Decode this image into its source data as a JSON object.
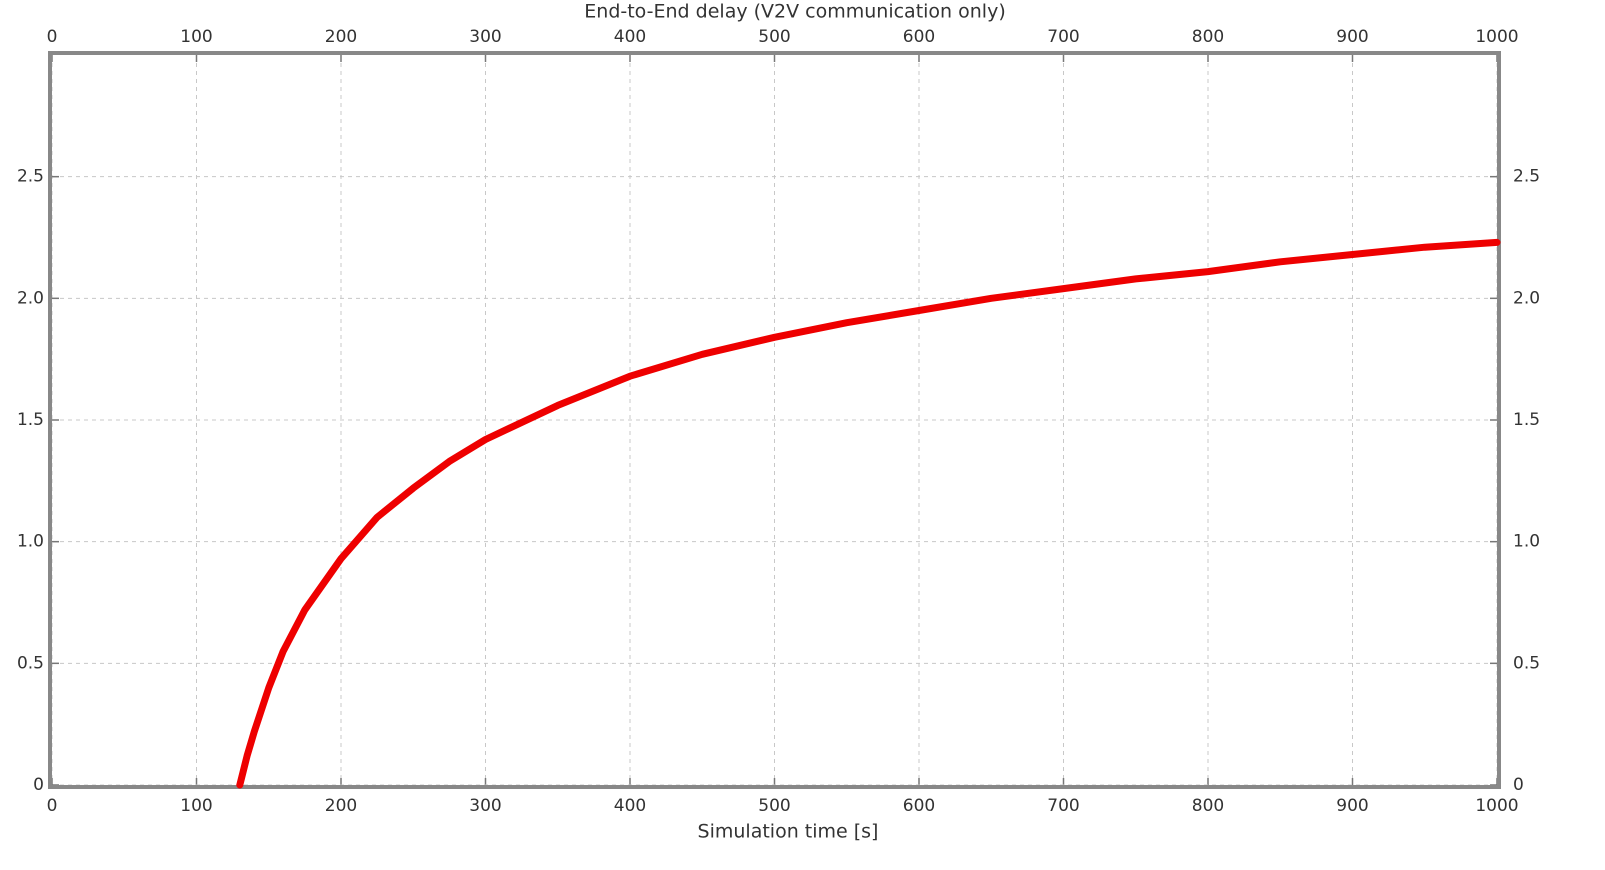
{
  "chart_data": {
    "type": "line",
    "title": "End-to-End delay (V2V communication only)",
    "x_label": "Simulation time [s]",
    "x": [
      130,
      135,
      140,
      150,
      160,
      175,
      200,
      225,
      250,
      275,
      300,
      350,
      400,
      450,
      500,
      550,
      600,
      650,
      700,
      750,
      800,
      850,
      900,
      950,
      1000
    ],
    "values": [
      0,
      0.12,
      0.22,
      0.4,
      0.55,
      0.72,
      0.93,
      1.1,
      1.22,
      1.33,
      1.42,
      1.56,
      1.68,
      1.77,
      1.84,
      1.9,
      1.95,
      2.0,
      2.04,
      2.08,
      2.11,
      2.15,
      2.18,
      2.21,
      2.23
    ],
    "color": "#ee0000",
    "xlim": [
      0,
      1000
    ],
    "xticks": [
      0,
      100,
      200,
      300,
      400,
      500,
      600,
      700,
      800,
      900,
      1000
    ],
    "ylim": [
      0,
      3
    ],
    "yticks": [
      0,
      0.5,
      {
        "value": 1,
        "label": "1.0"
      },
      1.5,
      {
        "value": 2,
        "label": "2.0"
      },
      2.5
    ],
    "grid": true
  }
}
